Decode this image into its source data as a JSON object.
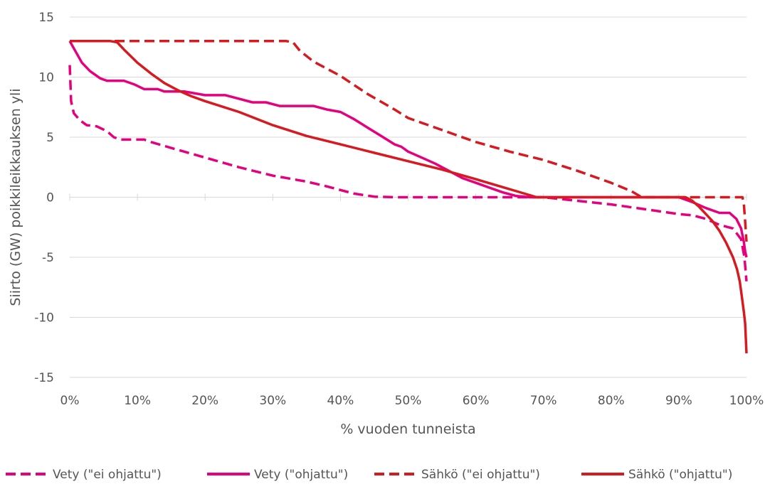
{
  "chart_data": {
    "type": "line",
    "title": "",
    "xlabel": "% vuoden tunneista",
    "ylabel": "Siirto (GW) poikkileikkauksen yli",
    "xlim": [
      0,
      100
    ],
    "ylim": [
      -15,
      15
    ],
    "x_ticks": [
      0,
      10,
      20,
      30,
      40,
      50,
      60,
      70,
      80,
      90,
      100
    ],
    "x_tick_labels": [
      "0%",
      "10%",
      "20%",
      "30%",
      "40%",
      "50%",
      "60%",
      "70%",
      "80%",
      "90%",
      "100%"
    ],
    "y_ticks": [
      15,
      10,
      5,
      0,
      -5,
      -10,
      -15
    ],
    "y_tick_labels": [
      "15",
      "10",
      "5",
      "0",
      "-5",
      "-10",
      "-15"
    ],
    "grid": "horizontal",
    "legend_position": "bottom",
    "series": [
      {
        "name": "Vety (\"ei ohjattu\")",
        "color": "#e6007e",
        "dash": "dashed",
        "points": [
          [
            0,
            11
          ],
          [
            0.2,
            8
          ],
          [
            0.6,
            7
          ],
          [
            1.5,
            6.4
          ],
          [
            2.5,
            6
          ],
          [
            4,
            5.9
          ],
          [
            5.5,
            5.5
          ],
          [
            6.5,
            5
          ],
          [
            7.5,
            4.8
          ],
          [
            11,
            4.8
          ],
          [
            12,
            4.6
          ],
          [
            15,
            4.1
          ],
          [
            20,
            3.3
          ],
          [
            25,
            2.5
          ],
          [
            30,
            1.8
          ],
          [
            35,
            1.3
          ],
          [
            38,
            0.9
          ],
          [
            42,
            0.3
          ],
          [
            45,
            0.05
          ],
          [
            48,
            0
          ],
          [
            70,
            0
          ],
          [
            80,
            -0.6
          ],
          [
            85,
            -1
          ],
          [
            90,
            -1.4
          ],
          [
            92,
            -1.5
          ],
          [
            94,
            -1.8
          ],
          [
            96,
            -2.3
          ],
          [
            98,
            -2.6
          ],
          [
            99.2,
            -3.5
          ],
          [
            99.7,
            -5
          ],
          [
            100,
            -7
          ]
        ]
      },
      {
        "name": "Vety (\"ohjattu\")",
        "color": "#e6007e",
        "dash": "solid",
        "points": [
          [
            0,
            13
          ],
          [
            0.8,
            12.2
          ],
          [
            1.8,
            11.2
          ],
          [
            3,
            10.5
          ],
          [
            4.5,
            9.9
          ],
          [
            5.5,
            9.7
          ],
          [
            8,
            9.7
          ],
          [
            9.5,
            9.4
          ],
          [
            11,
            9
          ],
          [
            13,
            9
          ],
          [
            14,
            8.8
          ],
          [
            17,
            8.8
          ],
          [
            20,
            8.5
          ],
          [
            23,
            8.5
          ],
          [
            25,
            8.2
          ],
          [
            27,
            7.9
          ],
          [
            29,
            7.9
          ],
          [
            31,
            7.6
          ],
          [
            35,
            7.6
          ],
          [
            36,
            7.6
          ],
          [
            38,
            7.3
          ],
          [
            40,
            7.1
          ],
          [
            42,
            6.5
          ],
          [
            44,
            5.8
          ],
          [
            46,
            5.1
          ],
          [
            48,
            4.4
          ],
          [
            49,
            4.2
          ],
          [
            50,
            3.8
          ],
          [
            52,
            3.3
          ],
          [
            54,
            2.8
          ],
          [
            56,
            2.2
          ],
          [
            58,
            1.6
          ],
          [
            60,
            1.2
          ],
          [
            62,
            0.8
          ],
          [
            64,
            0.4
          ],
          [
            66,
            0.1
          ],
          [
            68,
            0
          ],
          [
            90,
            0
          ],
          [
            92,
            -0.4
          ],
          [
            94,
            -0.9
          ],
          [
            96,
            -1.3
          ],
          [
            97.5,
            -1.3
          ],
          [
            98.5,
            -1.8
          ],
          [
            99.2,
            -2.6
          ],
          [
            99.6,
            -3.7
          ],
          [
            99.8,
            -4.5
          ],
          [
            100,
            -5
          ]
        ]
      },
      {
        "name": "Sähkö (\"ei ohjattu\")",
        "color": "#d71920",
        "dash": "dashed",
        "points": [
          [
            0,
            13
          ],
          [
            32,
            13
          ],
          [
            33,
            12.9
          ],
          [
            34,
            12.2
          ],
          [
            36,
            11.3
          ],
          [
            40,
            10.1
          ],
          [
            44,
            8.6
          ],
          [
            48,
            7.3
          ],
          [
            50,
            6.6
          ],
          [
            55,
            5.6
          ],
          [
            60,
            4.6
          ],
          [
            65,
            3.8
          ],
          [
            70,
            3.1
          ],
          [
            75,
            2.2
          ],
          [
            80,
            1.2
          ],
          [
            83,
            0.5
          ],
          [
            84.5,
            0
          ],
          [
            99.4,
            0
          ],
          [
            99.6,
            -0.5
          ],
          [
            99.8,
            -2
          ],
          [
            100,
            -3.7
          ]
        ]
      },
      {
        "name": "Sähkö (\"ohjattu\")",
        "color": "#d71920",
        "dash": "solid",
        "points": [
          [
            0,
            13
          ],
          [
            6,
            13
          ],
          [
            7,
            12.9
          ],
          [
            8,
            12.3
          ],
          [
            10,
            11.2
          ],
          [
            12,
            10.3
          ],
          [
            14,
            9.5
          ],
          [
            16,
            8.9
          ],
          [
            18,
            8.4
          ],
          [
            20,
            8
          ],
          [
            25,
            7.1
          ],
          [
            30,
            6
          ],
          [
            35,
            5.1
          ],
          [
            40,
            4.4
          ],
          [
            45,
            3.7
          ],
          [
            50,
            3
          ],
          [
            55,
            2.3
          ],
          [
            60,
            1.5
          ],
          [
            63,
            1
          ],
          [
            66,
            0.5
          ],
          [
            69,
            0
          ],
          [
            91,
            0
          ],
          [
            92,
            -0.3
          ],
          [
            93,
            -0.8
          ],
          [
            94,
            -1.4
          ],
          [
            95,
            -2
          ],
          [
            96,
            -2.8
          ],
          [
            97,
            -3.8
          ],
          [
            98,
            -5
          ],
          [
            98.6,
            -6
          ],
          [
            99,
            -7
          ],
          [
            99.3,
            -8.2
          ],
          [
            99.6,
            -9.5
          ],
          [
            99.8,
            -10.5
          ],
          [
            100,
            -13
          ]
        ]
      }
    ]
  }
}
